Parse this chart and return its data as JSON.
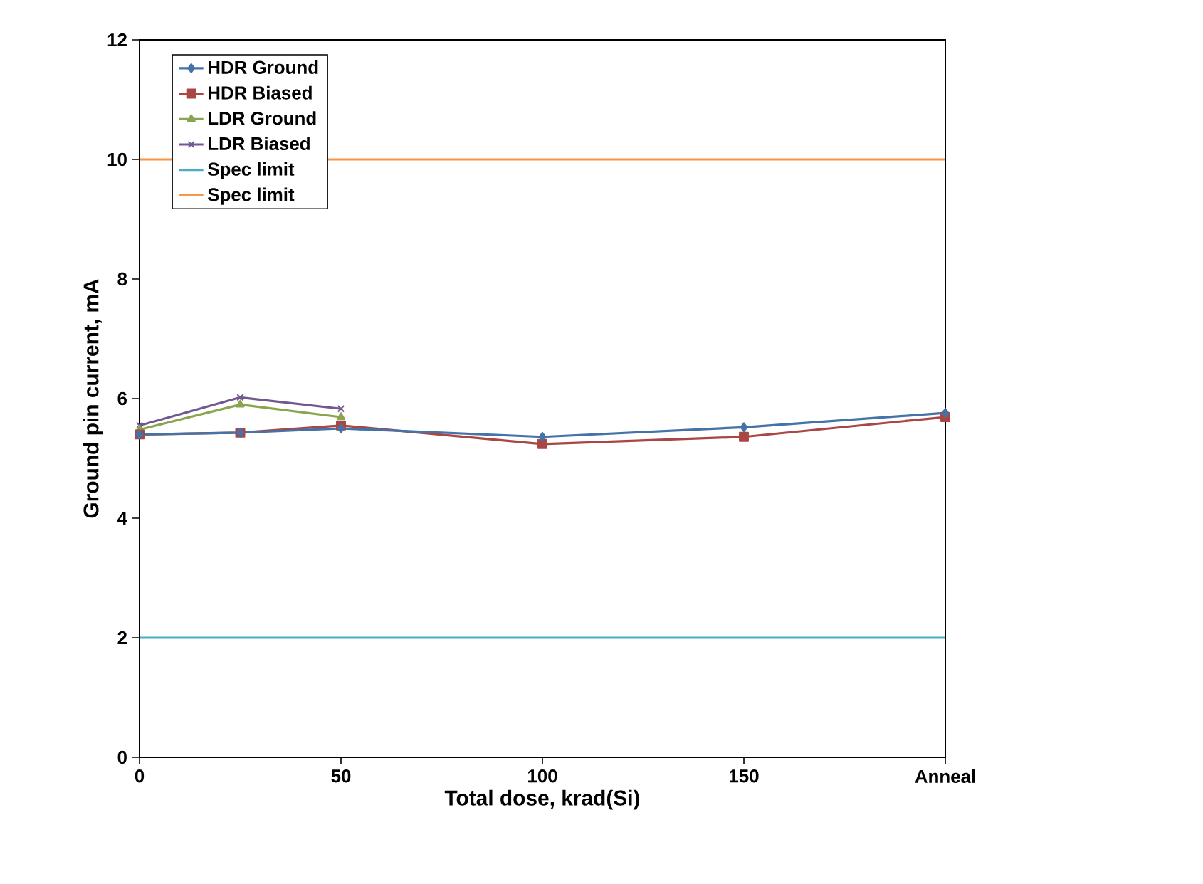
{
  "chart_data": {
    "type": "line",
    "xlabel": "Total dose, krad(Si)",
    "ylabel": "Ground pin current, mA",
    "xlim": [
      0,
      200
    ],
    "xticks": [
      0,
      50,
      100,
      150,
      {
        "value": 200,
        "label": "Anneal"
      }
    ],
    "ylim": [
      0,
      12
    ],
    "yticks": [
      0,
      2,
      4,
      6,
      8,
      10,
      12
    ],
    "grid": false,
    "legend": "top left",
    "series": [
      {
        "name": "HDR Ground",
        "color": "#4572a7",
        "marker": "diamond",
        "x": [
          0,
          25,
          50,
          100,
          150,
          200
        ],
        "values": [
          5.4,
          5.43,
          5.5,
          5.36,
          5.52,
          5.76
        ]
      },
      {
        "name": "HDR Biased",
        "color": "#aa4643",
        "marker": "square",
        "x": [
          0,
          25,
          50,
          100,
          150,
          200
        ],
        "values": [
          5.4,
          5.43,
          5.55,
          5.24,
          5.36,
          5.69
        ]
      },
      {
        "name": "LDR Ground",
        "color": "#89a54e",
        "marker": "triangle",
        "x": [
          0,
          25,
          50
        ],
        "values": [
          5.48,
          5.9,
          5.69
        ]
      },
      {
        "name": "LDR Biased",
        "color": "#71588f",
        "marker": "cross",
        "x": [
          0,
          25,
          50
        ],
        "values": [
          5.55,
          6.02,
          5.83
        ]
      },
      {
        "name": "Spec limit",
        "color": "#4bacc6",
        "marker": "none",
        "x": [
          0,
          200
        ],
        "values": [
          2,
          2
        ]
      },
      {
        "name": "Spec limit",
        "color": "#f79646",
        "marker": "none",
        "x": [
          0,
          200
        ],
        "values": [
          10,
          10
        ]
      }
    ]
  }
}
